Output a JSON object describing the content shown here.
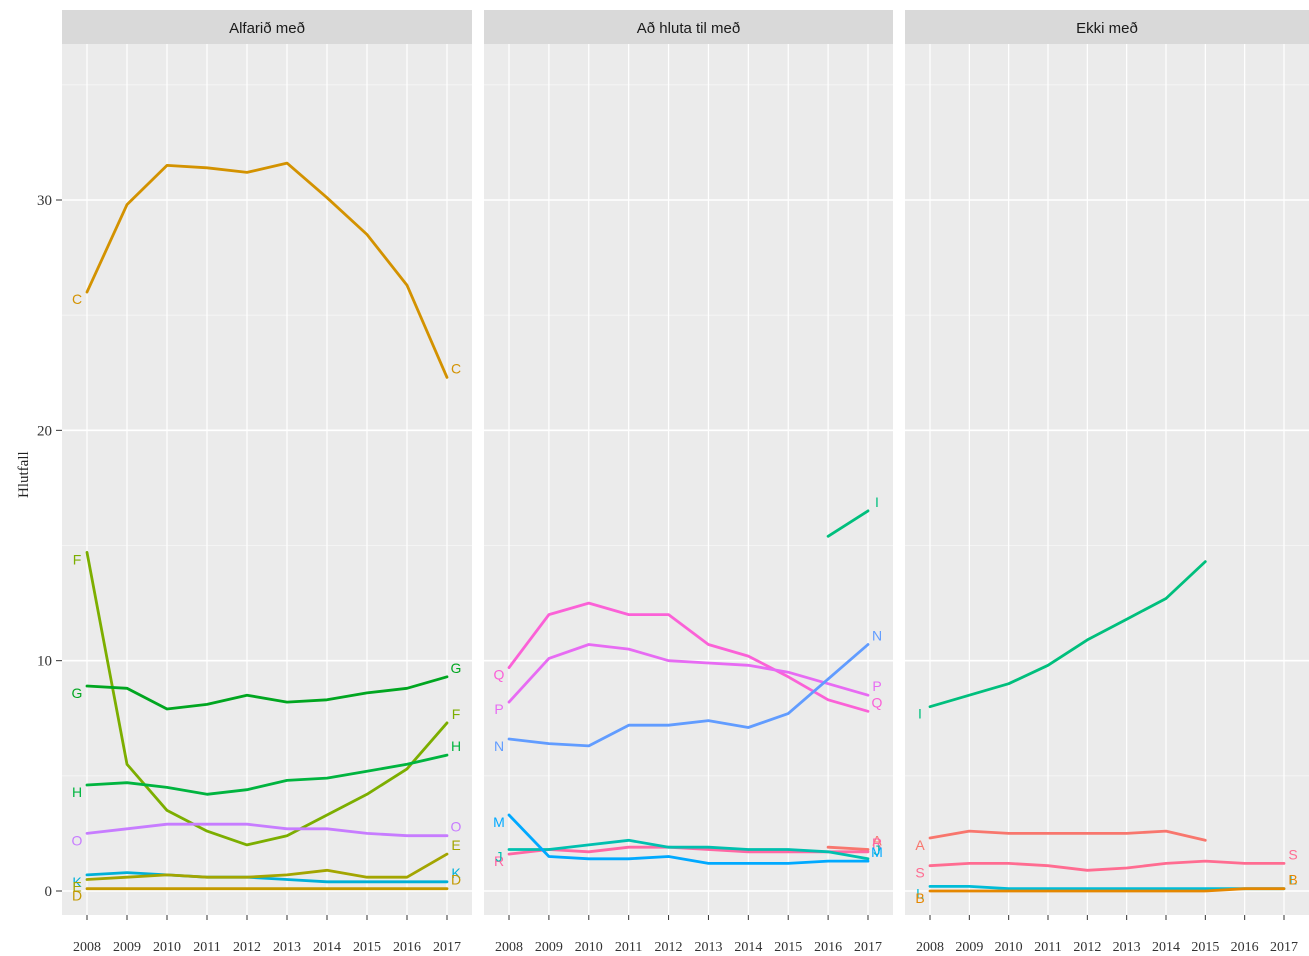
{
  "chart_data": {
    "type": "line",
    "ylabel": "Hlutfall",
    "ylim": [
      -1.5,
      37.5
    ],
    "yticks": [
      0,
      10,
      20,
      30
    ],
    "xticks": [
      2008,
      2009,
      2010,
      2011,
      2012,
      2013,
      2014,
      2015,
      2016,
      2017
    ],
    "grid": true,
    "panels": [
      {
        "title": "Alfarið með",
        "series": [
          {
            "name": "C",
            "color": "#D39200",
            "x": [
              2008,
              2009,
              2010,
              2011,
              2012,
              2013,
              2014,
              2015,
              2016,
              2017
            ],
            "y": [
              26.0,
              29.8,
              31.5,
              31.4,
              31.2,
              31.6,
              30.1,
              28.5,
              26.3,
              22.3
            ],
            "start_label": true,
            "end_label": true
          },
          {
            "name": "F",
            "color": "#7CAE00",
            "x": [
              2008,
              2009,
              2010,
              2011,
              2012,
              2013,
              2014,
              2015,
              2016,
              2017
            ],
            "y": [
              14.7,
              5.5,
              3.5,
              2.6,
              2.0,
              2.4,
              3.3,
              4.2,
              5.3,
              7.3
            ],
            "start_label": true,
            "end_label": true
          },
          {
            "name": "G",
            "color": "#00A620",
            "x": [
              2008,
              2009,
              2010,
              2011,
              2012,
              2013,
              2014,
              2015,
              2016,
              2017
            ],
            "y": [
              8.9,
              8.8,
              7.9,
              8.1,
              8.5,
              8.2,
              8.3,
              8.6,
              8.8,
              9.3
            ],
            "start_label": true,
            "end_label": true
          },
          {
            "name": "H",
            "color": "#00B43F",
            "x": [
              2008,
              2009,
              2010,
              2011,
              2012,
              2013,
              2014,
              2015,
              2016,
              2017
            ],
            "y": [
              4.6,
              4.7,
              4.5,
              4.2,
              4.4,
              4.8,
              4.9,
              5.2,
              5.5,
              5.9
            ],
            "start_label": true,
            "end_label": true
          },
          {
            "name": "O",
            "color": "#C77CFF",
            "x": [
              2008,
              2009,
              2010,
              2011,
              2012,
              2013,
              2014,
              2015,
              2016,
              2017
            ],
            "y": [
              2.5,
              2.7,
              2.9,
              2.9,
              2.9,
              2.7,
              2.7,
              2.5,
              2.4,
              2.4
            ],
            "start_label": true,
            "end_label": true
          },
          {
            "name": "K",
            "color": "#00B0D8",
            "x": [
              2008,
              2009,
              2010,
              2011,
              2012,
              2013,
              2014,
              2015,
              2016,
              2017
            ],
            "y": [
              0.7,
              0.8,
              0.7,
              0.6,
              0.6,
              0.5,
              0.4,
              0.4,
              0.4,
              0.4
            ],
            "start_label": true,
            "end_label": true
          },
          {
            "name": "E",
            "color": "#A3A500",
            "x": [
              2008,
              2009,
              2010,
              2011,
              2012,
              2013,
              2014,
              2015,
              2016,
              2017
            ],
            "y": [
              0.5,
              0.6,
              0.7,
              0.6,
              0.6,
              0.7,
              0.9,
              0.6,
              0.6,
              1.6
            ],
            "start_label": true,
            "end_label": true
          },
          {
            "name": "D",
            "color": "#C49A00",
            "x": [
              2008,
              2009,
              2010,
              2011,
              2012,
              2013,
              2014,
              2015,
              2016,
              2017
            ],
            "y": [
              0.1,
              0.1,
              0.1,
              0.1,
              0.1,
              0.1,
              0.1,
              0.1,
              0.1,
              0.1
            ],
            "start_label": true,
            "end_label": true
          }
        ]
      },
      {
        "title": "Að hluta til með",
        "series": [
          {
            "name": "I",
            "color": "#00BF7D",
            "x": [
              2016,
              2017
            ],
            "y": [
              15.4,
              16.5
            ],
            "start_label": false,
            "end_label": true
          },
          {
            "name": "Q",
            "color": "#FB61D7",
            "x": [
              2008,
              2009,
              2010,
              2011,
              2012,
              2013,
              2014,
              2015,
              2016,
              2017
            ],
            "y": [
              9.7,
              12.0,
              12.5,
              12.0,
              12.0,
              10.7,
              10.2,
              9.3,
              8.3,
              7.8
            ],
            "start_label": true,
            "end_label": true
          },
          {
            "name": "P",
            "color": "#E76BF3",
            "x": [
              2008,
              2009,
              2010,
              2011,
              2012,
              2013,
              2014,
              2015,
              2016,
              2017
            ],
            "y": [
              8.2,
              10.1,
              10.7,
              10.5,
              10.0,
              9.9,
              9.8,
              9.5,
              9.0,
              8.5
            ],
            "start_label": true,
            "end_label": true
          },
          {
            "name": "N",
            "color": "#619CFF",
            "x": [
              2008,
              2009,
              2010,
              2011,
              2012,
              2013,
              2014,
              2015,
              2016,
              2017
            ],
            "y": [
              6.6,
              6.4,
              6.3,
              7.2,
              7.2,
              7.4,
              7.1,
              7.7,
              9.2,
              10.7
            ],
            "start_label": true,
            "end_label": true
          },
          {
            "name": "A",
            "color": "#F8766D",
            "x": [
              2016,
              2017
            ],
            "y": [
              1.9,
              1.8
            ],
            "start_label": false,
            "end_label": true
          },
          {
            "name": "R",
            "color": "#FF67A4",
            "x": [
              2008,
              2009,
              2010,
              2011,
              2012,
              2013,
              2014,
              2015,
              2016,
              2017
            ],
            "y": [
              1.6,
              1.8,
              1.7,
              1.9,
              1.9,
              1.8,
              1.7,
              1.7,
              1.7,
              1.7
            ],
            "start_label": true,
            "end_label": true
          },
          {
            "name": "J",
            "color": "#00C0AF",
            "x": [
              2008,
              2009,
              2010,
              2011,
              2012,
              2013,
              2014,
              2015,
              2016,
              2017
            ],
            "y": [
              1.8,
              1.8,
              2.0,
              2.2,
              1.9,
              1.9,
              1.8,
              1.8,
              1.7,
              1.4
            ],
            "start_label": true,
            "end_label": true
          },
          {
            "name": "M",
            "color": "#00A9FF",
            "x": [
              2008,
              2009,
              2010,
              2011,
              2012,
              2013,
              2014,
              2015,
              2016,
              2017
            ],
            "y": [
              3.3,
              1.5,
              1.4,
              1.4,
              1.5,
              1.2,
              1.2,
              1.2,
              1.3,
              1.3
            ],
            "start_label": true,
            "end_label": true
          }
        ]
      },
      {
        "title": "Ekki með",
        "series": [
          {
            "name": "I",
            "color": "#00BF7D",
            "x": [
              2008,
              2009,
              2010,
              2011,
              2012,
              2013,
              2014,
              2015
            ],
            "y": [
              8.0,
              8.5,
              9.0,
              9.8,
              10.9,
              11.8,
              12.7,
              14.3
            ],
            "start_label": true,
            "end_label": false
          },
          {
            "name": "A",
            "color": "#F8766D",
            "x": [
              2008,
              2009,
              2010,
              2011,
              2012,
              2013,
              2014,
              2015
            ],
            "y": [
              2.3,
              2.6,
              2.5,
              2.5,
              2.5,
              2.5,
              2.6,
              2.2
            ],
            "start_label": true,
            "end_label": false
          },
          {
            "name": "S",
            "color": "#FF6C91",
            "x": [
              2008,
              2009,
              2010,
              2011,
              2012,
              2013,
              2014,
              2015,
              2016,
              2017
            ],
            "y": [
              1.1,
              1.2,
              1.2,
              1.1,
              0.9,
              1.0,
              1.2,
              1.3,
              1.2,
              1.2
            ],
            "start_label": true,
            "end_label": true
          },
          {
            "name": "L",
            "color": "#00BCD8",
            "x": [
              2008,
              2009,
              2010,
              2011,
              2012,
              2013,
              2014,
              2015,
              2016,
              2017
            ],
            "y": [
              0.2,
              0.2,
              0.1,
              0.1,
              0.1,
              0.1,
              0.1,
              0.1,
              0.1,
              0.1
            ],
            "start_label": true,
            "end_label": true
          },
          {
            "name": "B",
            "color": "#E58700",
            "x": [
              2008,
              2009,
              2010,
              2011,
              2012,
              2013,
              2014,
              2015,
              2016,
              2017
            ],
            "y": [
              0.0,
              0.0,
              0.0,
              0.0,
              0.0,
              0.0,
              0.0,
              0.0,
              0.1,
              0.1
            ],
            "start_label": true,
            "end_label": true
          }
        ]
      }
    ]
  }
}
